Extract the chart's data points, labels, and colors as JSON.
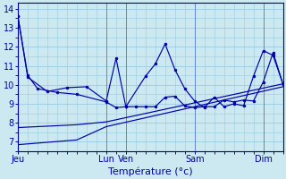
{
  "xlabel": "Température (°c)",
  "background_color": "#cce8f0",
  "grid_color": "#99cce0",
  "line_color": "#0000aa",
  "ylim": [
    6.5,
    14.3
  ],
  "xlim": [
    0,
    27
  ],
  "yticks": [
    7,
    8,
    9,
    10,
    11,
    12,
    13,
    14
  ],
  "xtick_positions": [
    0,
    9,
    11,
    18,
    25
  ],
  "xtick_labels": [
    "Jeu",
    "Lun",
    "Ven",
    "Sam",
    "Dim"
  ],
  "series": [
    {
      "x": [
        0,
        1,
        2,
        4,
        6,
        9,
        10,
        11,
        12,
        13,
        14,
        15,
        16,
        17,
        18,
        19,
        20,
        21,
        22,
        23,
        24,
        25,
        26,
        27
      ],
      "y": [
        13.6,
        10.5,
        9.8,
        9.6,
        9.5,
        9.1,
        8.8,
        8.85,
        8.85,
        8.85,
        8.85,
        9.35,
        9.4,
        8.9,
        8.8,
        8.85,
        8.85,
        9.2,
        9.1,
        9.2,
        9.15,
        10.15,
        11.7,
        10.05
      ],
      "markers": true
    },
    {
      "x": [
        0,
        1,
        3,
        5,
        7,
        9,
        10,
        11,
        13,
        14,
        15,
        16,
        17,
        18,
        19,
        20,
        21,
        22,
        23,
        24,
        25,
        26,
        27
      ],
      "y": [
        13.6,
        10.4,
        9.65,
        9.85,
        9.9,
        9.15,
        11.4,
        8.85,
        10.45,
        11.1,
        12.15,
        10.8,
        9.8,
        9.15,
        8.8,
        9.35,
        8.85,
        9.0,
        8.9,
        10.45,
        11.8,
        11.55,
        10.05
      ],
      "markers": true
    },
    {
      "x": [
        0,
        6,
        9,
        27
      ],
      "y": [
        7.75,
        7.9,
        8.05,
        10.05
      ],
      "markers": false
    },
    {
      "x": [
        0,
        6,
        9,
        27
      ],
      "y": [
        6.85,
        7.1,
        7.8,
        9.9
      ],
      "markers": false
    }
  ]
}
